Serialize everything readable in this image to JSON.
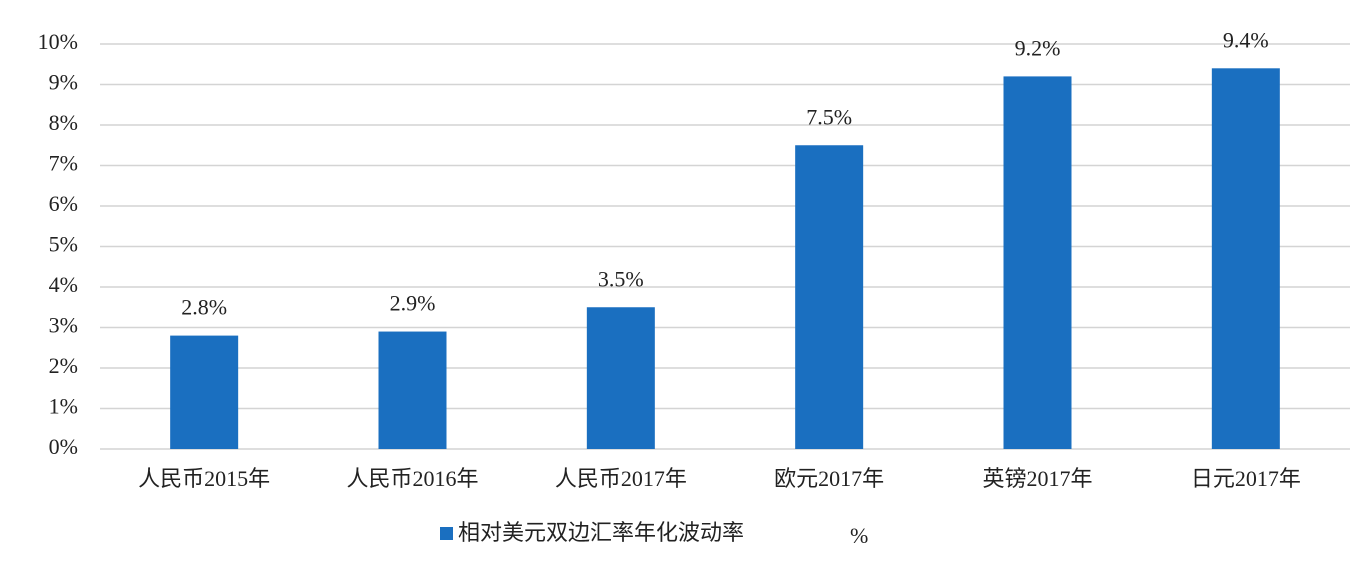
{
  "chart_data": {
    "type": "bar",
    "categories": [
      "人民币2015年",
      "人民币2016年",
      "人民币2017年",
      "欧元2017年",
      "英镑2017年",
      "日元2017年"
    ],
    "series": [
      {
        "name": "相对美元双边汇率年化波动率",
        "color": "#1a6fc0",
        "values": [
          2.8,
          2.9,
          3.5,
          7.5,
          9.2,
          9.4
        ],
        "value_labels": [
          "2.8%",
          "2.9%",
          "3.5%",
          "7.5%",
          "9.2%",
          "9.4%"
        ]
      }
    ],
    "legend_unit": "%",
    "ylim": [
      0,
      10
    ],
    "yticks": [
      {
        "value": 0,
        "label": "0%"
      },
      {
        "value": 1,
        "label": "1%"
      },
      {
        "value": 2,
        "label": "2%"
      },
      {
        "value": 3,
        "label": "3%"
      },
      {
        "value": 4,
        "label": "4%"
      },
      {
        "value": 5,
        "label": "5%"
      },
      {
        "value": 6,
        "label": "6%"
      },
      {
        "value": 7,
        "label": "7%"
      },
      {
        "value": 8,
        "label": "8%"
      },
      {
        "value": 9,
        "label": "9%"
      },
      {
        "value": 10,
        "label": "10%"
      }
    ],
    "grid": true,
    "legend": "bottom"
  }
}
